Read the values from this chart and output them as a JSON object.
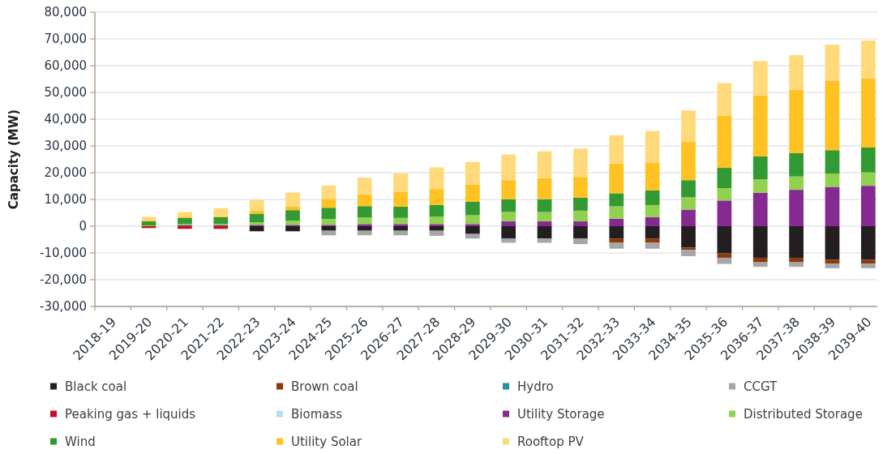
{
  "chart_data": {
    "type": "bar",
    "stacked": true,
    "ylabel": "Capacity (MW)",
    "categories": [
      "2018-19",
      "2019-20",
      "2020-21",
      "2021-22",
      "2022-23",
      "2023-24",
      "2024-25",
      "2025-26",
      "2026-27",
      "2027-28",
      "2028-29",
      "2029-30",
      "2030-31",
      "2031-32",
      "2032-33",
      "2033-34",
      "2034-35",
      "2035-36",
      "2036-37",
      "2037-38",
      "2038-39",
      "2039-40"
    ],
    "series": [
      {
        "name": "Black coal",
        "color": "#231f20",
        "values": [
          null,
          null,
          null,
          null,
          -1900,
          -1900,
          -1700,
          -1700,
          -1700,
          -1700,
          -2900,
          -4600,
          -4600,
          -4600,
          -4600,
          -4600,
          -8000,
          -10200,
          -11800,
          -11800,
          -12500,
          -12500
        ]
      },
      {
        "name": "Brown coal",
        "color": "#8b3a0f",
        "values": [
          null,
          null,
          null,
          null,
          null,
          null,
          null,
          null,
          null,
          null,
          null,
          null,
          null,
          null,
          -1600,
          -1600,
          -900,
          -1600,
          -1700,
          -1700,
          -1500,
          -1500
        ]
      },
      {
        "name": "Hydro",
        "color": "#2b8aa6",
        "values": [
          null,
          null,
          null,
          null,
          null,
          null,
          null,
          null,
          null,
          null,
          null,
          null,
          null,
          null,
          null,
          null,
          null,
          null,
          null,
          null,
          null,
          null
        ]
      },
      {
        "name": "CCGT",
        "color": "#a6a6a6",
        "values": [
          null,
          null,
          null,
          null,
          null,
          null,
          -1700,
          -1700,
          -1700,
          -1900,
          -1700,
          -1600,
          -1600,
          -2100,
          -2200,
          -2200,
          -2300,
          -2300,
          -1700,
          -1700,
          -1700,
          -1700
        ]
      },
      {
        "name": "Peaking gas + liquids",
        "color": "#c8102e",
        "values": [
          null,
          -700,
          -1000,
          -1000,
          null,
          null,
          null,
          null,
          null,
          null,
          null,
          null,
          null,
          null,
          null,
          null,
          null,
          null,
          null,
          null,
          null,
          null
        ]
      },
      {
        "name": "Biomass",
        "color": "#b3dff0",
        "values": [
          null,
          null,
          null,
          null,
          null,
          null,
          null,
          null,
          null,
          null,
          null,
          null,
          null,
          null,
          null,
          null,
          null,
          null,
          null,
          null,
          null,
          null
        ]
      },
      {
        "name": "Utility Storage",
        "color": "#862a92",
        "values": [
          null,
          null,
          300,
          300,
          500,
          500,
          500,
          800,
          800,
          800,
          800,
          1800,
          1800,
          1800,
          2800,
          3400,
          6200,
          9600,
          12500,
          13600,
          14700,
          15100
        ]
      },
      {
        "name": "Distributed Storage",
        "color": "#92d050",
        "values": [
          null,
          300,
          500,
          500,
          1000,
          1600,
          2200,
          2500,
          2300,
          2800,
          3300,
          3500,
          3500,
          4000,
          4600,
          4500,
          4600,
          4600,
          5000,
          5000,
          5000,
          5000
        ]
      },
      {
        "name": "Wind",
        "color": "#339933",
        "values": [
          null,
          1500,
          2300,
          2600,
          3200,
          3900,
          4200,
          4200,
          4200,
          4300,
          5000,
          4800,
          4800,
          4800,
          4900,
          5500,
          6400,
          7600,
          8600,
          8700,
          8700,
          9300
        ]
      },
      {
        "name": "Utility Solar",
        "color": "#ffc222",
        "values": [
          null,
          400,
          500,
          300,
          1200,
          1300,
          3300,
          4300,
          5500,
          6000,
          6500,
          7100,
          7900,
          7800,
          11100,
          10400,
          14300,
          19400,
          22800,
          23700,
          25900,
          25900
        ]
      },
      {
        "name": "Rooftop PV",
        "color": "#ffd97a",
        "values": [
          null,
          1300,
          1700,
          3000,
          3800,
          5300,
          5000,
          6300,
          6900,
          8100,
          8400,
          9600,
          10000,
          10600,
          10600,
          11800,
          11800,
          12300,
          12800,
          12900,
          13500,
          14100
        ]
      }
    ],
    "ylim": [
      -30000,
      80000
    ],
    "yticks": [
      {
        "value": -30000,
        "label": "-30,000"
      },
      {
        "value": -20000,
        "label": "-20,000"
      },
      {
        "value": -10000,
        "label": "-10,000"
      },
      {
        "value": 0,
        "label": "0"
      },
      {
        "value": 10000,
        "label": "10,000"
      },
      {
        "value": 20000,
        "label": "20,000"
      },
      {
        "value": 30000,
        "label": "30,000"
      },
      {
        "value": 40000,
        "label": "40,000"
      },
      {
        "value": 50000,
        "label": "50,000"
      },
      {
        "value": 60000,
        "label": "60,000"
      },
      {
        "value": 70000,
        "label": "70,000"
      },
      {
        "value": 80000,
        "label": "80,000"
      }
    ],
    "grid": true,
    "legend": "bottom"
  }
}
